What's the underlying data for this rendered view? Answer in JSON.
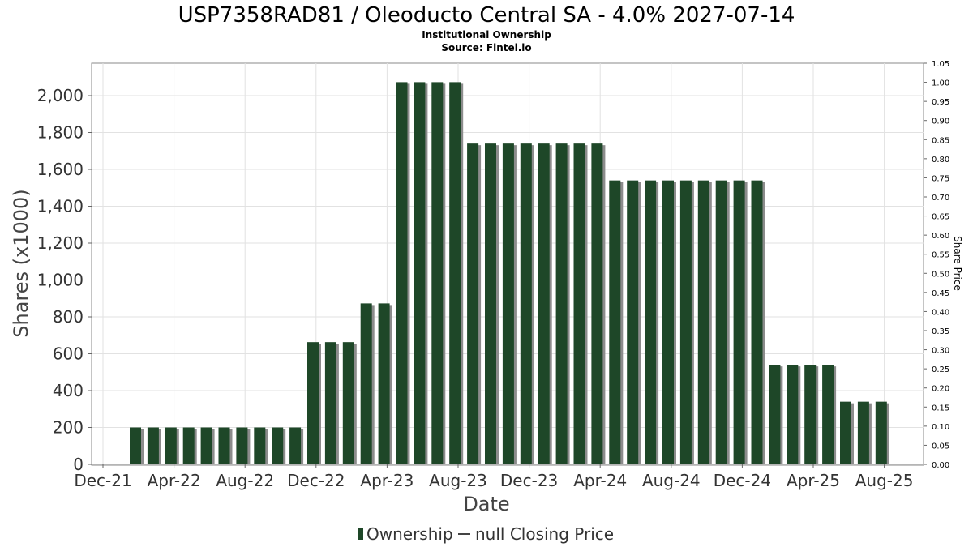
{
  "chart_data": {
    "type": "bar",
    "title": "USP7358RAD81 / Oleoducto Central SA - 4.0% 2027-07-14",
    "subtitle": "Institutional Ownership",
    "source": "Source: Fintel.io",
    "xlabel": "Date",
    "ylabel": "Shares (x1000)",
    "y2label": "Share Price",
    "ylim": [
      0,
      2200
    ],
    "y2lim": [
      0,
      1.05
    ],
    "yticks": [
      "0",
      "200",
      "400",
      "600",
      "800",
      "1,000",
      "1,200",
      "1,400",
      "1,600",
      "1,800",
      "2,000"
    ],
    "y2ticks": [
      "0.00",
      "0.05",
      "0.10",
      "0.15",
      "0.20",
      "0.25",
      "0.30",
      "0.35",
      "0.40",
      "0.45",
      "0.50",
      "0.55",
      "0.60",
      "0.65",
      "0.70",
      "0.75",
      "0.80",
      "0.85",
      "0.90",
      "0.95",
      "1.00",
      "1.05"
    ],
    "xticks": [
      "Dec-21",
      "Apr-22",
      "Aug-22",
      "Dec-22",
      "Apr-23",
      "Aug-23",
      "Dec-23",
      "Apr-24",
      "Aug-24",
      "Dec-24",
      "Apr-25",
      "Aug-25"
    ],
    "grid": true,
    "legend_position": "bottom",
    "series": [
      {
        "name": "Ownership",
        "color": "#1e4728",
        "values": [
          200,
          200,
          200,
          200,
          200,
          200,
          200,
          200,
          200,
          200,
          663,
          663,
          663,
          873,
          873,
          2073,
          2073,
          2073,
          2073,
          1740,
          1740,
          1740,
          1740,
          1740,
          1740,
          1740,
          1740,
          1540,
          1540,
          1540,
          1540,
          1540,
          1540,
          1540,
          1540,
          1540,
          540,
          540,
          540,
          540,
          340,
          340,
          340
        ]
      },
      {
        "name": "null Closing Price",
        "color": "#444444",
        "values": []
      }
    ]
  }
}
